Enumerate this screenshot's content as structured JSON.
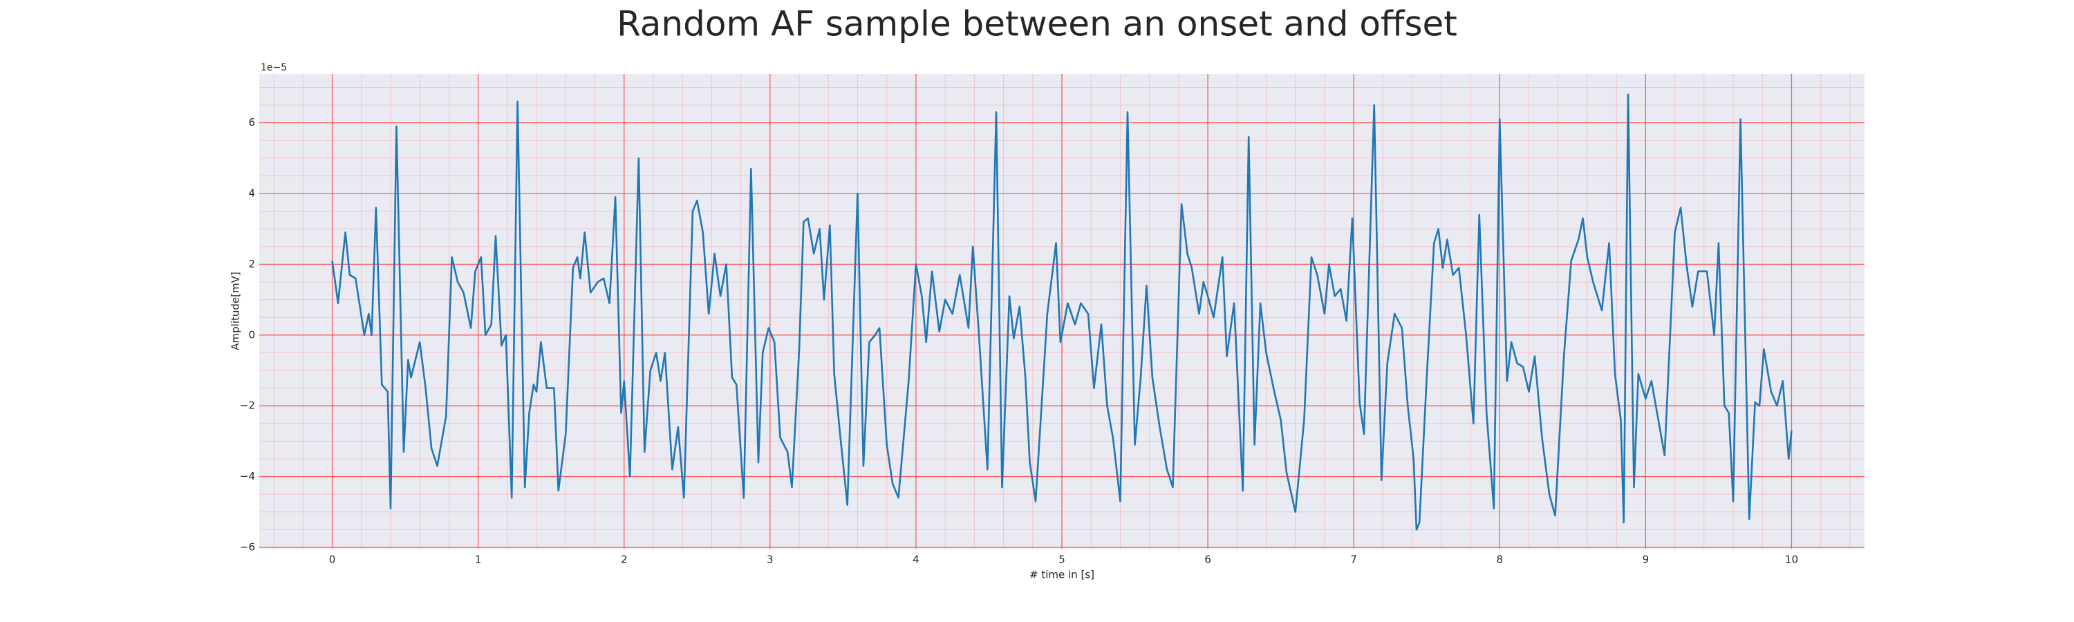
{
  "chart_data": {
    "type": "line",
    "title": "Random AF sample between an onset and offset",
    "xlabel": "# time in [s]",
    "ylabel": "Amplitude[mV]",
    "y_offset_label": "1e−5",
    "color": "#1f77b4",
    "grid": true,
    "minor_grid": true,
    "xlim": [
      -0.5,
      10.5
    ],
    "ylim": [
      -6.04,
      7.38
    ],
    "xticks": [
      0,
      1,
      2,
      3,
      4,
      5,
      6,
      7,
      8,
      9,
      10
    ],
    "yticks": [
      {
        "value": -6,
        "label": "−6"
      },
      {
        "value": -4,
        "label": "−4"
      },
      {
        "value": -2,
        "label": "−2"
      },
      0,
      2,
      4,
      6
    ],
    "x": [
      0.0,
      0.04,
      0.09,
      0.12,
      0.16,
      0.22,
      0.25,
      0.27,
      0.3,
      0.34,
      0.38,
      0.4,
      0.44,
      0.49,
      0.52,
      0.54,
      0.6,
      0.64,
      0.68,
      0.72,
      0.78,
      0.82,
      0.86,
      0.9,
      0.95,
      0.98,
      1.02,
      1.05,
      1.09,
      1.12,
      1.16,
      1.19,
      1.23,
      1.27,
      1.32,
      1.35,
      1.38,
      1.4,
      1.43,
      1.47,
      1.52,
      1.55,
      1.6,
      1.65,
      1.68,
      1.7,
      1.73,
      1.77,
      1.82,
      1.86,
      1.9,
      1.94,
      1.98,
      2.0,
      2.04,
      2.1,
      2.14,
      2.18,
      2.22,
      2.25,
      2.28,
      2.33,
      2.37,
      2.41,
      2.47,
      2.5,
      2.54,
      2.58,
      2.62,
      2.66,
      2.7,
      2.74,
      2.77,
      2.82,
      2.87,
      2.92,
      2.95,
      2.99,
      3.03,
      3.07,
      3.12,
      3.15,
      3.2,
      3.23,
      3.26,
      3.3,
      3.34,
      3.37,
      3.41,
      3.44,
      3.48,
      3.53,
      3.6,
      3.64,
      3.68,
      3.72,
      3.75,
      3.8,
      3.84,
      3.88,
      3.95,
      4.0,
      4.04,
      4.07,
      4.11,
      4.16,
      4.2,
      4.25,
      4.3,
      4.36,
      4.39,
      4.43,
      4.49,
      4.55,
      4.59,
      4.64,
      4.67,
      4.71,
      4.75,
      4.78,
      4.82,
      4.9,
      4.96,
      4.99,
      5.04,
      5.09,
      5.13,
      5.18,
      5.22,
      5.27,
      5.31,
      5.35,
      5.4,
      5.45,
      5.5,
      5.54,
      5.58,
      5.62,
      5.67,
      5.72,
      5.76,
      5.82,
      5.86,
      5.89,
      5.94,
      5.97,
      6.0,
      6.04,
      6.1,
      6.13,
      6.18,
      6.24,
      6.28,
      6.32,
      6.36,
      6.4,
      6.45,
      6.5,
      6.54,
      6.6,
      6.66,
      6.71,
      6.75,
      6.8,
      6.83,
      6.87,
      6.91,
      6.95,
      6.99,
      7.04,
      7.07,
      7.14,
      7.19,
      7.23,
      7.28,
      7.33,
      7.37,
      7.41,
      7.43,
      7.45,
      7.5,
      7.55,
      7.58,
      7.61,
      7.64,
      7.68,
      7.72,
      7.77,
      7.82,
      7.86,
      7.91,
      7.96,
      8.0,
      8.05,
      8.08,
      8.12,
      8.16,
      8.2,
      8.24,
      8.29,
      8.34,
      8.38,
      8.44,
      8.49,
      8.54,
      8.57,
      8.6,
      8.64,
      8.7,
      8.75,
      8.79,
      8.83,
      8.85,
      8.88,
      8.92,
      8.95,
      9.0,
      9.04,
      9.07,
      9.13,
      9.2,
      9.24,
      9.28,
      9.32,
      9.36,
      9.42,
      9.47,
      9.5,
      9.54,
      9.57,
      9.6,
      9.65,
      9.71,
      9.75,
      9.78,
      9.81,
      9.86,
      9.9,
      9.94,
      9.98,
      10.0
    ],
    "values": [
      2.1,
      0.9,
      2.9,
      1.7,
      1.6,
      0.0,
      0.6,
      0.0,
      3.6,
      -1.4,
      -1.6,
      -4.9,
      5.9,
      -3.3,
      -0.7,
      -1.2,
      -0.2,
      -1.5,
      -3.2,
      -3.7,
      -2.3,
      2.2,
      1.5,
      1.2,
      0.2,
      1.8,
      2.2,
      0.0,
      0.3,
      2.8,
      -0.3,
      0.0,
      -4.6,
      6.6,
      -4.3,
      -2.2,
      -1.4,
      -1.6,
      -0.2,
      -1.5,
      -1.5,
      -4.4,
      -2.8,
      1.9,
      2.2,
      1.6,
      2.9,
      1.2,
      1.5,
      1.6,
      0.9,
      3.9,
      -2.2,
      -1.3,
      -4.0,
      5.0,
      -3.3,
      -1.0,
      -0.5,
      -1.3,
      -0.5,
      -3.8,
      -2.6,
      -4.6,
      3.5,
      3.8,
      2.9,
      0.6,
      2.3,
      1.1,
      2.0,
      -1.2,
      -1.4,
      -4.6,
      4.7,
      -3.6,
      -0.5,
      0.2,
      -0.2,
      -2.9,
      -3.3,
      -4.3,
      -0.4,
      3.2,
      3.3,
      2.3,
      3.0,
      1.0,
      3.1,
      -1.1,
      -2.8,
      -4.8,
      4.0,
      -3.7,
      -0.2,
      0.0,
      0.2,
      -3.1,
      -4.2,
      -4.6,
      -1.3,
      2.0,
      1.1,
      -0.2,
      1.8,
      0.1,
      1.0,
      0.6,
      1.7,
      0.2,
      2.5,
      0.1,
      -3.8,
      6.3,
      -4.3,
      1.1,
      -0.1,
      0.8,
      -1.2,
      -3.6,
      -4.7,
      0.6,
      2.6,
      -0.2,
      0.9,
      0.3,
      0.9,
      0.6,
      -1.5,
      0.3,
      -2.0,
      -2.9,
      -4.7,
      6.3,
      -3.1,
      -1.2,
      1.4,
      -1.2,
      -2.6,
      -3.8,
      -4.3,
      3.7,
      2.3,
      1.9,
      0.6,
      1.5,
      1.1,
      0.5,
      2.2,
      -0.6,
      0.9,
      -4.4,
      5.6,
      -3.1,
      0.9,
      -0.5,
      -1.5,
      -2.4,
      -3.9,
      -5.0,
      -2.4,
      2.2,
      1.7,
      0.6,
      2.0,
      1.1,
      1.3,
      0.4,
      3.3,
      -1.9,
      -2.8,
      6.5,
      -4.1,
      -0.8,
      0.6,
      0.2,
      -2.0,
      -3.5,
      -5.5,
      -5.3,
      -1.2,
      2.6,
      3.0,
      1.9,
      2.7,
      1.7,
      1.9,
      0.0,
      -2.5,
      3.4,
      -2.2,
      -4.9,
      6.1,
      -1.3,
      -0.2,
      -0.8,
      -0.9,
      -1.6,
      -0.6,
      -2.9,
      -4.5,
      -5.1,
      -0.6,
      2.1,
      2.7,
      3.3,
      2.2,
      1.5,
      0.7,
      2.6,
      -1.1,
      -2.4,
      -5.3,
      6.8,
      -4.3,
      -1.1,
      -1.8,
      -1.3,
      -2.0,
      -3.4,
      2.9,
      3.6,
      2.0,
      0.8,
      1.8,
      1.8,
      0.0,
      2.6,
      -2.0,
      -2.2,
      -4.7,
      6.1,
      -5.2,
      -1.9,
      -2.0,
      -0.4,
      -1.6,
      -2.0,
      -1.3,
      -3.5,
      -2.7
    ]
  }
}
